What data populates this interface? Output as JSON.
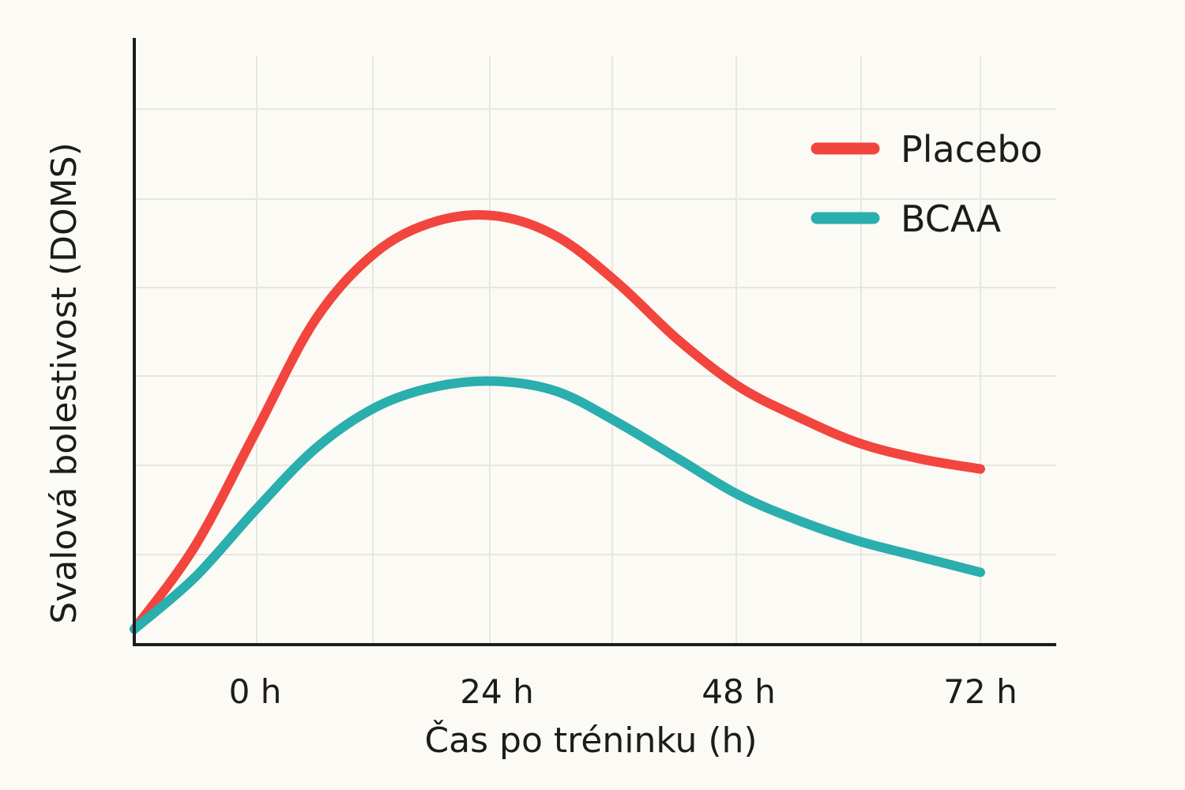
{
  "chart_data": {
    "type": "line",
    "xlabel": "Čas po tréninku (h)",
    "ylabel": "Svalová bolestivost (DOMS)",
    "x_tick_labels": [
      "0 h",
      "24 h",
      "48 h",
      "72 h"
    ],
    "xlim": [
      -12,
      81
    ],
    "ylim": [
      0,
      10
    ],
    "grid": true,
    "legend_position": "top-right",
    "series": [
      {
        "name": "Placebo",
        "color": "#f2453e",
        "x": [
          -12,
          -6,
          0,
          6,
          12,
          18,
          24,
          30,
          36,
          42,
          48,
          54,
          60,
          66,
          72
        ],
        "y": [
          0.3,
          1.9,
          4.1,
          6.3,
          7.6,
          8.2,
          8.3,
          7.9,
          7.0,
          5.9,
          5.0,
          4.4,
          3.9,
          3.6,
          3.4
        ]
      },
      {
        "name": "BCAA",
        "color": "#2aaeae",
        "x": [
          -12,
          -6,
          0,
          6,
          12,
          18,
          24,
          30,
          36,
          42,
          48,
          54,
          60,
          66,
          72
        ],
        "y": [
          0.3,
          1.3,
          2.6,
          3.8,
          4.6,
          5.0,
          5.1,
          4.9,
          4.3,
          3.6,
          2.9,
          2.4,
          2.0,
          1.7,
          1.4
        ]
      }
    ]
  }
}
